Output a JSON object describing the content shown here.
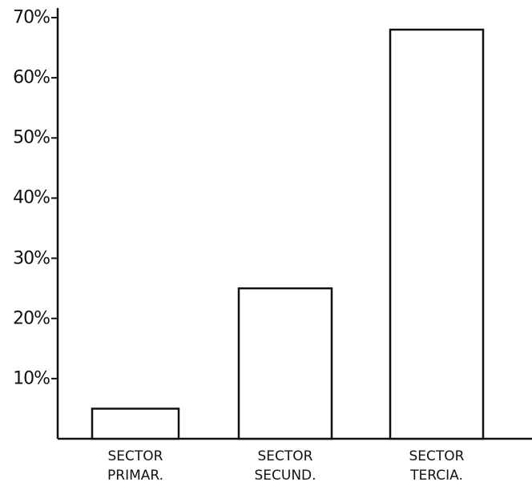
{
  "chart_data": {
    "type": "bar",
    "categories": [
      "SECTOR\nPRIMAR.",
      "SECTOR\nSECUND.",
      "SECTOR\nTERCIA."
    ],
    "values": [
      5,
      25,
      68
    ],
    "color": "#ffffff",
    "ylim": [
      0,
      70
    ],
    "yticks": [
      {
        "value": 10,
        "label": "10%"
      },
      {
        "value": 20,
        "label": "20%"
      },
      {
        "value": 30,
        "label": "30%"
      },
      {
        "value": 40,
        "label": "40%"
      },
      {
        "value": 50,
        "label": "50%"
      },
      {
        "value": 60,
        "label": "60%"
      },
      {
        "value": 70,
        "label": "70%"
      }
    ]
  }
}
